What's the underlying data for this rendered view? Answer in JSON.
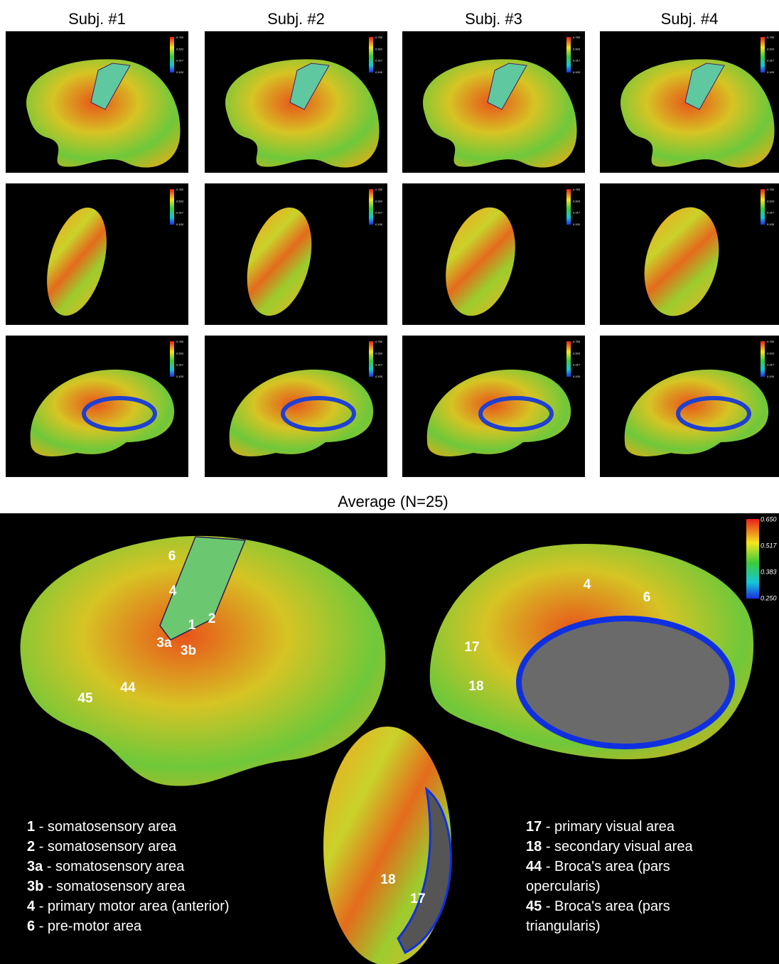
{
  "columns": [
    "Subj. #1",
    "Subj. #2",
    "Subj. #3",
    "Subj. #4"
  ],
  "subject_colorbar": [
    "0.750",
    "0.533",
    "0.317",
    "0.100"
  ],
  "average": {
    "title": "Average (N=25)",
    "colorbar": [
      "0.650",
      "0.517",
      "0.383",
      "0.250"
    ],
    "lateral_labels": [
      "6",
      "4",
      "1",
      "2",
      "3a",
      "3b",
      "45",
      "44"
    ],
    "medial_labels": [
      "4",
      "6",
      "17",
      "18"
    ],
    "posterior_labels": [
      "18",
      "17"
    ],
    "legend_left": [
      {
        "num": "1",
        "text": "- somatosensory area"
      },
      {
        "num": "2",
        "text": "- somatosensory area"
      },
      {
        "num": "3a",
        "text": "- somatosensory area"
      },
      {
        "num": "3b",
        "text": "- somatosensory area"
      },
      {
        "num": "4",
        "text": "- primary motor area (anterior)"
      },
      {
        "num": "6",
        "text": "- pre-motor area"
      }
    ],
    "legend_right": [
      {
        "num": "17",
        "text": "- primary visual area"
      },
      {
        "num": "18",
        "text": "- secondary visual area"
      },
      {
        "num": "44",
        "text": "- Broca's area (pars opercularis)"
      },
      {
        "num": "45",
        "text": "- Broca's area (pars triangularis)"
      }
    ]
  }
}
